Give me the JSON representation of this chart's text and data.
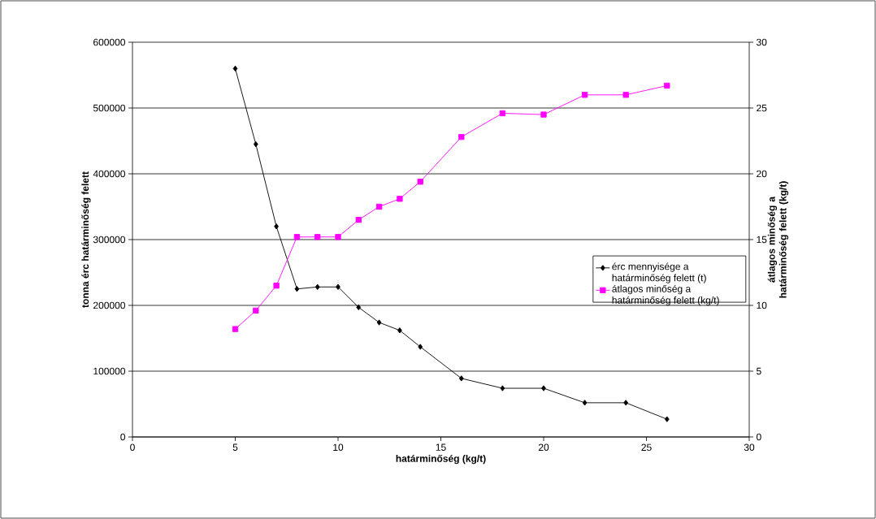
{
  "chart_data": {
    "type": "line",
    "xlabel": "határminőség (kg/t)",
    "ylabel": "tonna érc határminőség felett",
    "y2label": "átlagos minőség a határminőség felett (kg/t)",
    "x": [
      5,
      6,
      7,
      8,
      9,
      10,
      11,
      12,
      13,
      14,
      16,
      18,
      20,
      22,
      24,
      26
    ],
    "series": [
      {
        "name": "érc mennyisége a határminőség felett (t)",
        "color": "#000000",
        "marker": "diamond",
        "values": [
          560000,
          445000,
          320000,
          225000,
          228000,
          228000,
          197000,
          174000,
          162000,
          137000,
          89000,
          74000,
          74000,
          52000,
          52000,
          27000
        ]
      },
      {
        "name": "átlagos minőség a határminőség felett (kg/t)",
        "color": "#ff00ff",
        "marker": "square",
        "axis": "y2",
        "values": [
          8.2,
          9.6,
          11.5,
          15.2,
          15.2,
          15.2,
          16.5,
          17.5,
          18.1,
          19.4,
          22.8,
          24.6,
          24.5,
          26,
          26,
          26.7
        ]
      }
    ],
    "xlim": [
      0,
      30
    ],
    "xticks": [
      0,
      5,
      10,
      15,
      20,
      25,
      30
    ],
    "ylim": [
      0,
      600000
    ],
    "yticks": [
      0,
      100000,
      200000,
      300000,
      400000,
      500000,
      600000
    ],
    "y2lim": [
      0,
      30
    ],
    "y2ticks": [
      0,
      5,
      10,
      15,
      20,
      25,
      30
    ],
    "grid": "y",
    "legend": "right"
  }
}
